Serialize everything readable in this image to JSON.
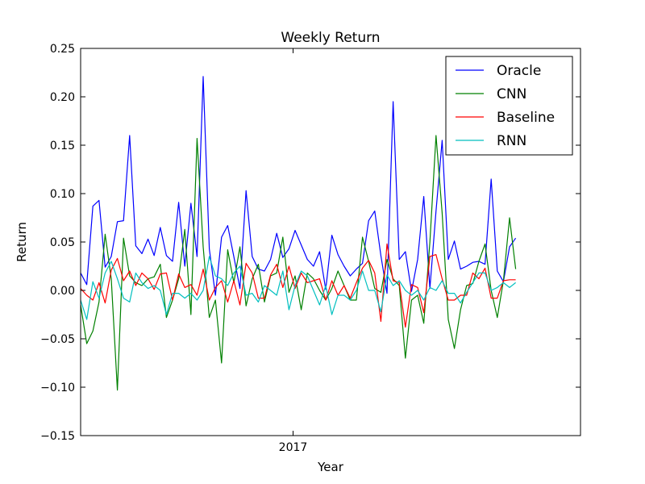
{
  "chart_data": {
    "type": "line",
    "title": "Weekly Return",
    "xlabel": "Year",
    "ylabel": "Return",
    "ylim": [
      -0.15,
      0.25
    ],
    "yticks": [
      "−0.15",
      "−0.10",
      "−0.05",
      "0.00",
      "0.05",
      "0.10",
      "0.15",
      "0.20",
      "0.25"
    ],
    "ytick_values": [
      -0.15,
      -0.1,
      -0.05,
      0.0,
      0.05,
      0.1,
      0.15,
      0.2,
      0.25
    ],
    "xlim": [
      0,
      80
    ],
    "xticks": [
      {
        "label": "2017",
        "week": 34
      }
    ],
    "grid": false,
    "legend_position": "top-right",
    "series": [
      {
        "name": "Oracle",
        "color": "#0000ff",
        "values": [
          0.018,
          0.006,
          0.087,
          0.093,
          0.024,
          0.035,
          0.071,
          0.072,
          0.16,
          0.046,
          0.038,
          0.053,
          0.036,
          0.065,
          0.036,
          0.03,
          0.091,
          0.025,
          0.09,
          0.035,
          0.221,
          0.043,
          -0.005,
          0.055,
          0.067,
          0.035,
          0.002,
          0.103,
          0.035,
          0.022,
          0.02,
          0.032,
          0.059,
          0.034,
          0.043,
          0.062,
          0.047,
          0.032,
          0.025,
          0.04,
          0.001,
          0.057,
          0.037,
          0.025,
          0.015,
          0.022,
          0.028,
          0.072,
          0.082,
          0.036,
          -0.003,
          0.195,
          0.032,
          0.04,
          -0.001,
          0.032,
          0.097,
          0.002,
          0.082,
          0.155,
          0.032,
          0.051,
          0.022,
          0.025,
          0.029,
          0.03,
          0.027,
          0.115,
          0.02,
          0.009,
          0.045,
          0.054
        ]
      },
      {
        "name": "CNN",
        "color": "#008000",
        "values": [
          -0.015,
          -0.055,
          -0.042,
          -0.012,
          0.058,
          0.012,
          -0.103,
          0.054,
          0.015,
          0.008,
          0.005,
          0.012,
          0.014,
          0.027,
          -0.028,
          -0.01,
          0.012,
          0.063,
          -0.025,
          0.157,
          0.045,
          -0.028,
          -0.01,
          -0.075,
          0.042,
          0.008,
          0.045,
          -0.016,
          0.012,
          0.027,
          -0.012,
          0.015,
          0.018,
          0.055,
          -0.002,
          0.015,
          -0.02,
          0.018,
          0.012,
          0.0,
          -0.01,
          0.002,
          0.02,
          0.005,
          -0.01,
          -0.01,
          0.055,
          0.03,
          0.002,
          -0.002,
          0.032,
          0.012,
          0.005,
          -0.07,
          -0.01,
          -0.005,
          -0.034,
          0.05,
          0.16,
          0.08,
          -0.03,
          -0.06,
          -0.02,
          0.005,
          0.007,
          0.03,
          0.048,
          0.0,
          -0.028,
          0.01,
          0.075,
          0.022
        ]
      },
      {
        "name": "Baseline",
        "color": "#ff0000",
        "values": [
          0.002,
          -0.005,
          -0.01,
          0.008,
          -0.013,
          0.021,
          0.033,
          0.01,
          0.02,
          0.005,
          0.018,
          0.012,
          0.001,
          0.017,
          0.018,
          -0.01,
          0.017,
          0.003,
          0.006,
          -0.005,
          0.022,
          -0.01,
          0.003,
          0.01,
          -0.012,
          0.01,
          -0.015,
          0.028,
          0.018,
          -0.008,
          -0.008,
          0.016,
          0.027,
          0.003,
          0.025,
          0.002,
          0.018,
          0.008,
          0.01,
          0.012,
          -0.01,
          0.01,
          -0.005,
          0.005,
          -0.008,
          0.008,
          0.023,
          0.031,
          0.018,
          -0.032,
          0.048,
          0.01,
          0.008,
          -0.038,
          0.006,
          0.003,
          -0.023,
          0.035,
          0.037,
          0.012,
          -0.01,
          -0.01,
          -0.005,
          -0.005,
          0.018,
          0.012,
          0.023,
          -0.008,
          -0.008,
          0.01,
          0.011,
          0.011
        ]
      },
      {
        "name": "RNN",
        "color": "#00bfbf",
        "values": [
          -0.01,
          -0.03,
          0.009,
          -0.008,
          0.018,
          0.03,
          0.012,
          -0.008,
          -0.012,
          0.018,
          0.008,
          0.002,
          0.005,
          0.0,
          -0.025,
          -0.003,
          -0.003,
          -0.008,
          -0.003,
          -0.01,
          0.0,
          0.035,
          0.015,
          0.012,
          0.005,
          0.018,
          0.025,
          -0.005,
          -0.003,
          -0.012,
          0.005,
          0.0,
          -0.005,
          0.02,
          -0.02,
          0.005,
          0.02,
          0.015,
          0.0,
          -0.015,
          0.005,
          -0.025,
          -0.005,
          -0.005,
          -0.01,
          0.0,
          0.02,
          0.0,
          0.0,
          -0.022,
          0.016,
          0.005,
          0.01,
          0.0,
          -0.005,
          0.0,
          -0.01,
          0.003,
          0.0,
          0.01,
          -0.003,
          -0.003,
          -0.013,
          -0.002,
          0.008,
          0.018,
          0.018,
          0.0,
          0.003,
          0.008,
          0.003,
          0.008
        ]
      }
    ]
  }
}
